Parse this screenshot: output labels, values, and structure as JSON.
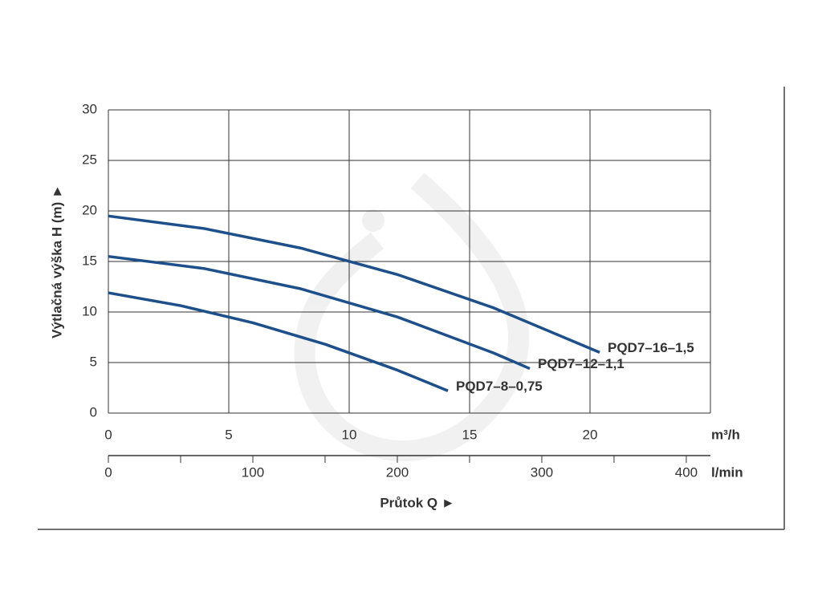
{
  "chart_data": {
    "type": "line",
    "ylabel": "Výtlačná výška H (m) ►",
    "xunit": "m³/h",
    "x2unit": "l/min",
    "x2label": "Průtok Q ►",
    "xlim": [
      0,
      25
    ],
    "xticks": [
      0,
      5,
      10,
      15,
      20
    ],
    "ylim": [
      0,
      30
    ],
    "yticks": [
      0,
      5,
      10,
      15,
      20,
      25,
      30
    ],
    "x2lim": [
      0,
      416.7
    ],
    "x2ticks": [
      0,
      100,
      200,
      300,
      400
    ],
    "x2minorticks": [
      50,
      150,
      250,
      350
    ],
    "grid": true,
    "series": [
      {
        "name": "PQD7–16–1,5",
        "color": "#1d4f8a",
        "x": [
          0,
          4,
          8,
          12,
          16,
          20.4
        ],
        "values": [
          19.5,
          18.25,
          16.32,
          13.71,
          10.41,
          6.0
        ]
      },
      {
        "name": "PQD7–12–1,1",
        "color": "#1d4f8a",
        "x": [
          0,
          4,
          8,
          12,
          16,
          17.5
        ],
        "values": [
          15.5,
          14.29,
          12.29,
          9.51,
          5.94,
          4.4
        ]
      },
      {
        "name": "PQD7–8–0,75",
        "color": "#1d4f8a",
        "x": [
          0,
          3,
          6,
          9,
          12,
          14.1
        ],
        "values": [
          11.9,
          10.63,
          8.93,
          6.81,
          4.25,
          2.2
        ]
      }
    ]
  }
}
